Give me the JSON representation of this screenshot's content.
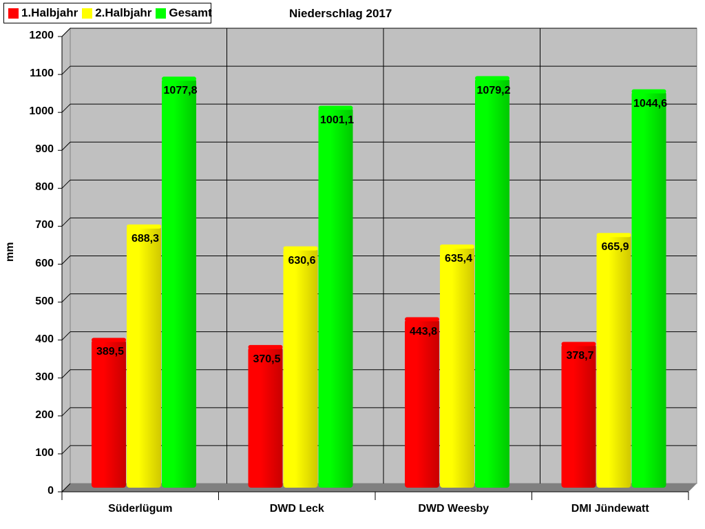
{
  "chart_data": {
    "type": "bar",
    "title": "Niederschlag 2017",
    "xlabel": "",
    "ylabel": "mm",
    "ylim": [
      0,
      1200
    ],
    "yticks": [
      0,
      100,
      200,
      300,
      400,
      500,
      600,
      700,
      800,
      900,
      1000,
      1100,
      1200
    ],
    "grid": true,
    "legend_position": "top-left",
    "categories": [
      "Süderlügum",
      "DWD Leck",
      "DWD Weesby",
      "DMI Jündewatt"
    ],
    "series": [
      {
        "name": "1.Halbjahr",
        "color": "#ff0000",
        "values": [
          389.5,
          370.5,
          443.8,
          378.7
        ],
        "labels": [
          "389,5",
          "370,5",
          "443,8",
          "378,7"
        ]
      },
      {
        "name": "2.Halbjahr",
        "color": "#ffff00",
        "values": [
          688.3,
          630.6,
          635.4,
          665.9
        ],
        "labels": [
          "688,3",
          "630,6",
          "635,4",
          "665,9"
        ]
      },
      {
        "name": "Gesamt",
        "color": "#00ff00",
        "values": [
          1077.8,
          1001.1,
          1079.2,
          1044.6
        ],
        "labels": [
          "1077,8",
          "1001,1",
          "1079,2",
          "1044,6"
        ]
      }
    ]
  },
  "legend": {
    "items": [
      {
        "label": "1.Halbjahr",
        "color": "#ff0000"
      },
      {
        "label": "2.Halbjahr",
        "color": "#ffff00"
      },
      {
        "label": "Gesamt",
        "color": "#00ff00"
      }
    ]
  },
  "colors": {
    "plot_background": "#c0c0c0",
    "floor": "#808080",
    "gridline": "#000000"
  }
}
